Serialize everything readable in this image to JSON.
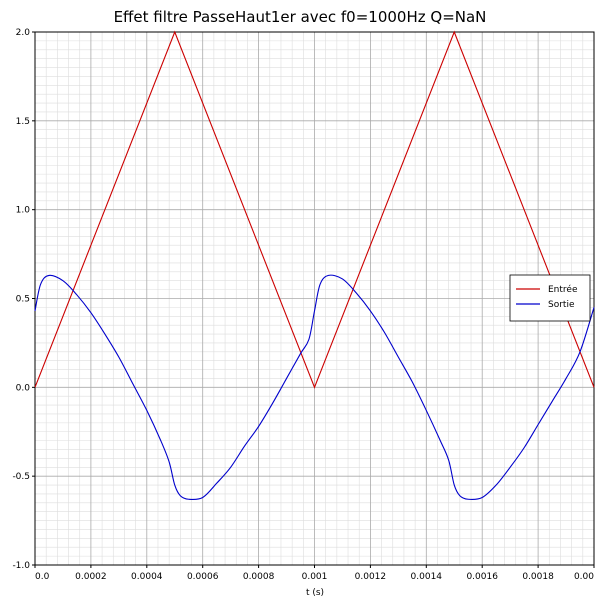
{
  "chart_data": {
    "type": "line",
    "title": "Effet filtre PasseHaut1er avec f0=1000Hz Q=NaN",
    "xlabel": "t (s)",
    "ylabel": "",
    "xlim": [
      0,
      0.002
    ],
    "ylim": [
      -1.0,
      2.0
    ],
    "x_ticks": [
      0,
      0.0002,
      0.0004,
      0.0006,
      0.0008,
      0.001,
      0.0012,
      0.0014,
      0.0016,
      0.0018,
      0.002
    ],
    "x_tick_labels": [
      "0.0",
      "0.0002",
      "0.0004",
      "0.0006",
      "0.0008",
      "0.001",
      "0.0012",
      "0.0014",
      "0.0016",
      "0.0018",
      "0.00"
    ],
    "y_ticks": [
      -1.0,
      -0.5,
      0.0,
      0.5,
      1.0,
      1.5,
      2.0
    ],
    "y_tick_labels": [
      "-1.0",
      "-0.5",
      "0.0",
      "0.5",
      "1.0",
      "1.5",
      "2.0"
    ],
    "grid": true,
    "legend_position": "right",
    "series": [
      {
        "name": "Entrée",
        "color": "#cc0000",
        "x": [
          0,
          0.0005,
          0.001,
          0.0015,
          0.002
        ],
        "y": [
          0,
          2.0,
          0,
          2.0,
          0
        ]
      },
      {
        "name": "Sortie",
        "color": "#0000cc",
        "x": [
          0,
          2e-05,
          5e-05,
          0.0001,
          0.00015,
          0.0002,
          0.00025,
          0.0003,
          0.00035,
          0.0004,
          0.00045,
          0.00048,
          0.0005,
          0.00052,
          0.00055,
          0.0006,
          0.00065,
          0.0007,
          0.00075,
          0.0008,
          0.00085,
          0.0009,
          0.00095,
          0.00098,
          0.001,
          0.00102,
          0.00105,
          0.0011,
          0.00115,
          0.0012,
          0.00125,
          0.0013,
          0.00135,
          0.0014,
          0.00145,
          0.00148,
          0.0015,
          0.00152,
          0.00155,
          0.0016,
          0.00165,
          0.0017,
          0.00175,
          0.0018,
          0.00185,
          0.0019,
          0.00195,
          0.002
        ],
        "y": [
          0.43,
          0.58,
          0.63,
          0.6,
          0.52,
          0.42,
          0.3,
          0.17,
          0.02,
          -0.13,
          -0.3,
          -0.42,
          -0.55,
          -0.61,
          -0.63,
          -0.62,
          -0.54,
          -0.45,
          -0.33,
          -0.22,
          -0.09,
          0.05,
          0.19,
          0.27,
          0.43,
          0.58,
          0.63,
          0.61,
          0.53,
          0.43,
          0.31,
          0.17,
          0.03,
          -0.13,
          -0.3,
          -0.41,
          -0.55,
          -0.61,
          -0.63,
          -0.62,
          -0.55,
          -0.45,
          -0.34,
          -0.21,
          -0.08,
          0.05,
          0.2,
          0.45
        ]
      }
    ]
  }
}
